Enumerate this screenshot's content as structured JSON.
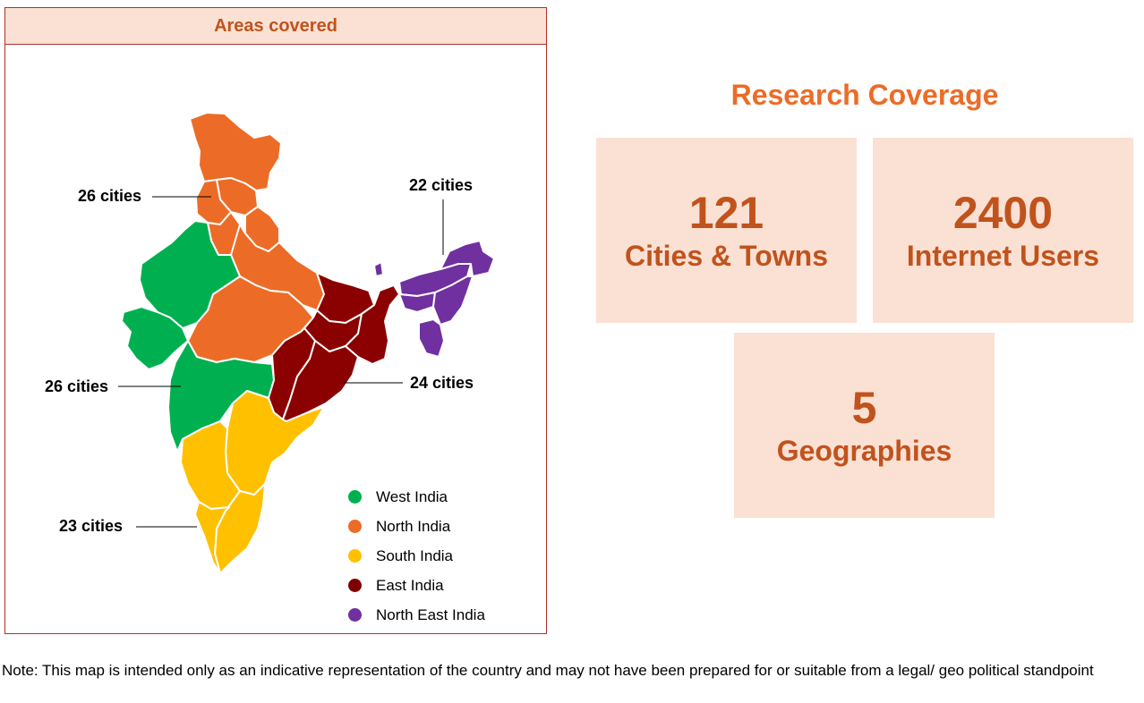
{
  "map_panel": {
    "title": "Areas covered",
    "callouts": {
      "north": "26 cities",
      "north_east": "22 cities",
      "west": "26 cities",
      "east": "24 cities",
      "south": "23 cities"
    },
    "legend": [
      {
        "label": "West India",
        "color": "#00b050"
      },
      {
        "label": "North India",
        "color": "#ec6c27"
      },
      {
        "label": "South India",
        "color": "#ffc000"
      },
      {
        "label": "East India",
        "color": "#7f0000"
      },
      {
        "label": "North East India",
        "color": "#7030a0"
      }
    ]
  },
  "coverage": {
    "title": "Research Coverage",
    "stats": [
      {
        "value": "121",
        "label": "Cities & Towns"
      },
      {
        "value": "2400",
        "label": "Internet Users"
      },
      {
        "value": "5",
        "label": "Geographies"
      }
    ]
  },
  "note": "Note: This map is intended only as an indicative representation of the country and may not have been prepared for or suitable from a legal/ geo political standpoint",
  "colors": {
    "west": "#00b050",
    "north": "#ec6c27",
    "south": "#ffc000",
    "east": "#8b0000",
    "north_east": "#7030a0",
    "accent": "#c0531c",
    "box_bg": "#fbe0d4"
  }
}
